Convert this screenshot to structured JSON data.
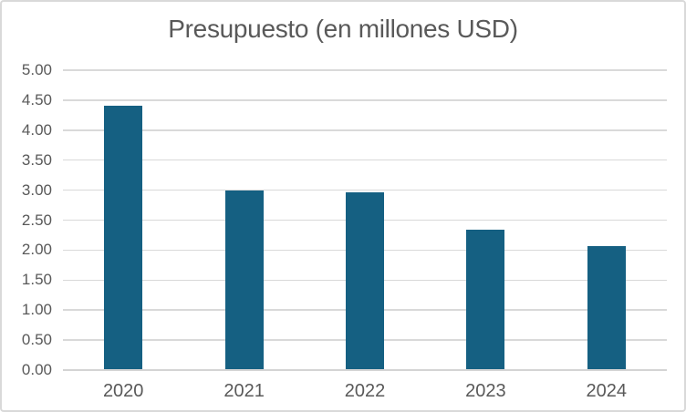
{
  "title": "Presupuesto (en millones USD)",
  "colors": {
    "bar": "#156082",
    "title_text": "#595959",
    "axis_text": "#595959",
    "gridline": "#d9d9d9",
    "axis_line": "#d4d4d4",
    "frame_border": "#d9d9d9",
    "background": "#ffffff"
  },
  "chart_data": {
    "type": "bar",
    "title": "Presupuesto (en millones USD)",
    "categories": [
      "2020",
      "2021",
      "2022",
      "2023",
      "2024"
    ],
    "values": [
      4.4,
      3.0,
      2.97,
      2.34,
      2.07
    ],
    "xlabel": "",
    "ylabel": "",
    "ylim": [
      0,
      5
    ],
    "y_tick_step": 0.5,
    "y_ticks": [
      "5.00",
      "4.50",
      "4.00",
      "3.50",
      "3.00",
      "2.50",
      "2.00",
      "1.50",
      "1.00",
      "0.50",
      "0.00"
    ],
    "grid": true,
    "legend": false,
    "series_color": "#156082"
  }
}
